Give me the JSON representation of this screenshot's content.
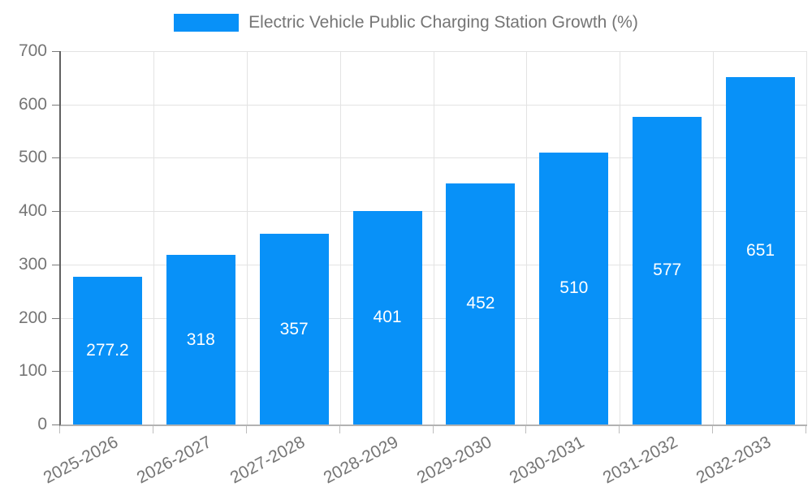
{
  "chart_data": {
    "type": "bar",
    "title": "Electric Vehicle Public Charging Station Growth (%)",
    "categories": [
      "2025-2026",
      "2026-2027",
      "2027-2028",
      "2028-2029",
      "2029-2030",
      "2030-2031",
      "2031-2032",
      "2032-2033"
    ],
    "series": [
      {
        "name": "Electric Vehicle Public Charging Station Growth (%)",
        "values": [
          277.2,
          318,
          357,
          401,
          452,
          510,
          577,
          651
        ],
        "color": "#0891f8"
      }
    ],
    "value_labels": [
      "277.2",
      "318",
      "357",
      "401",
      "452",
      "510",
      "577",
      "651"
    ],
    "xlabel": "",
    "ylabel": "",
    "ylim": [
      0,
      700
    ],
    "yticks": [
      0,
      100,
      200,
      300,
      400,
      500,
      600,
      700
    ],
    "grid": "both",
    "legend_position": "top"
  },
  "legend": {
    "entries": [
      {
        "label": "Electric Vehicle Public Charging Station Growth (%)",
        "swatch_color": "#0891f8"
      }
    ]
  },
  "colors": {
    "bar": "#0891f8",
    "value_label": "#ffffff",
    "tick_label": "#757575",
    "gridline": "#e3e3e3",
    "y_axis": "#616161",
    "x_axis": "#b2b2b2",
    "background": "#ffffff"
  }
}
